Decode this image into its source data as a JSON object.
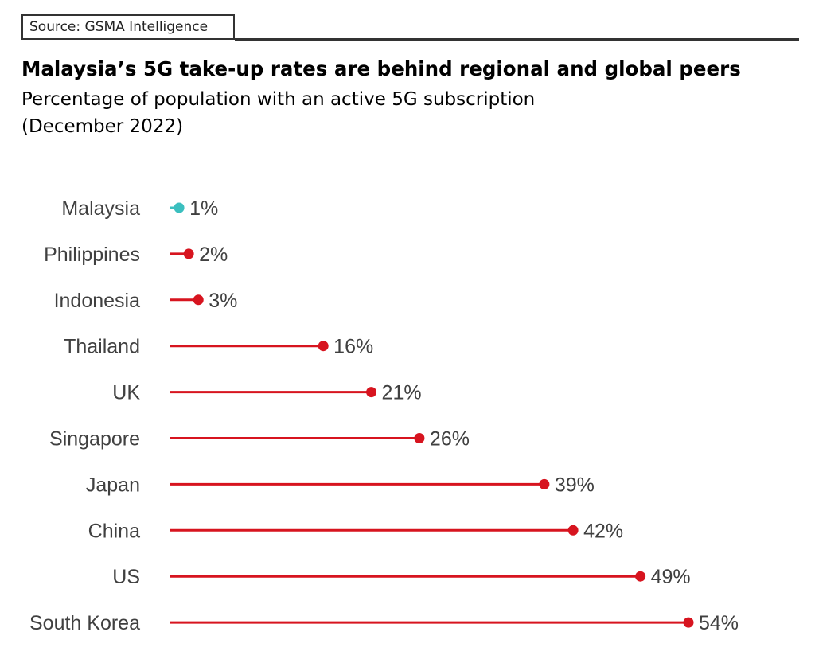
{
  "source": "Source: GSMA Intelligence",
  "title": "Malaysia’s 5G take-up rates are behind regional and global peers",
  "subtitle_line1": "Percentage of population with an active 5G subscription",
  "subtitle_line2": "(December 2022)",
  "colors": {
    "highlight": "#3bbfbf",
    "default": "#d7141f"
  },
  "chart_data": {
    "type": "lollipop",
    "title": "Malaysia’s 5G take-up rates are behind regional and global peers",
    "subtitle": "Percentage of population with an active 5G subscription (December 2022)",
    "xlabel": "",
    "ylabel": "",
    "unit": "%",
    "xlim": [
      0,
      54
    ],
    "grid": false,
    "legend": "none",
    "categories": [
      "Malaysia",
      "Philippines",
      "Indonesia",
      "Thailand",
      "UK",
      "Singapore",
      "Japan",
      "China",
      "US",
      "South Korea"
    ],
    "values": [
      1,
      2,
      3,
      16,
      21,
      26,
      39,
      42,
      49,
      54
    ],
    "labels": [
      "1%",
      "2%",
      "3%",
      "16%",
      "21%",
      "26%",
      "39%",
      "42%",
      "49%",
      "54%"
    ],
    "highlight": "Malaysia"
  }
}
